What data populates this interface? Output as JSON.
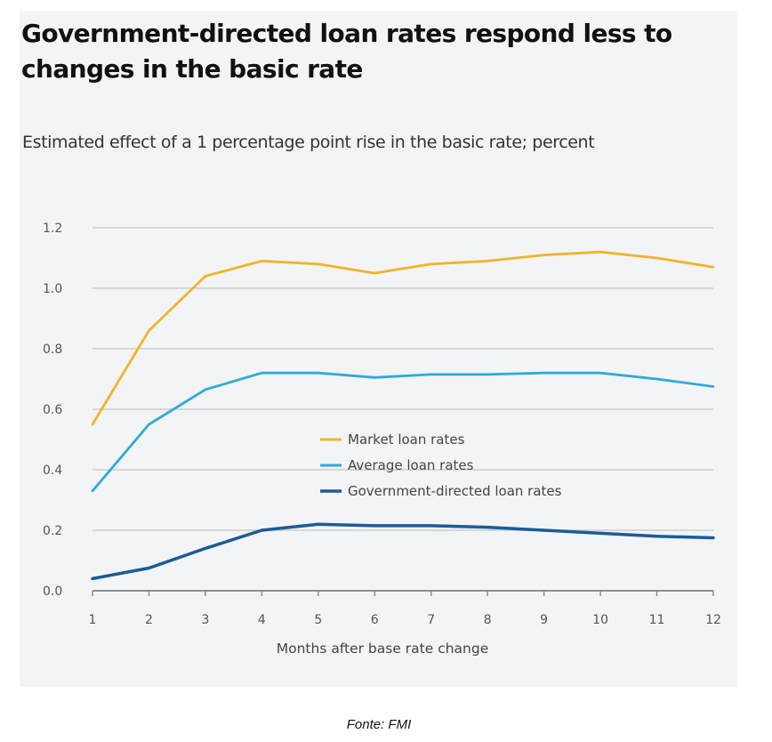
{
  "chart_data": {
    "type": "line",
    "title": "Government-directed loan rates respond less to changes in the basic rate",
    "subtitle": "Estimated effect of a 1 percentage point rise in the basic rate; percent",
    "xlabel": "Months after base rate change",
    "ylabel": "",
    "x": [
      1,
      2,
      3,
      4,
      5,
      6,
      7,
      8,
      9,
      10,
      11,
      12
    ],
    "xticks": [
      "1",
      "2",
      "3",
      "4",
      "5",
      "6",
      "7",
      "8",
      "9",
      "10",
      "11",
      "12"
    ],
    "ylim": [
      0,
      1.2
    ],
    "yticks": [
      "0.0",
      "0.2",
      "0.4",
      "0.6",
      "0.8",
      "1.0",
      "1.2"
    ],
    "ytick_values": [
      0,
      0.2,
      0.4,
      0.6,
      0.8,
      1.0,
      1.2
    ],
    "grid": true,
    "legend_position": "center",
    "series": [
      {
        "name": "Market loan rates",
        "color": "#f0b429",
        "values": [
          0.55,
          0.86,
          1.04,
          1.09,
          1.08,
          1.05,
          1.08,
          1.09,
          1.11,
          1.12,
          1.1,
          1.07
        ]
      },
      {
        "name": "Average loan rates",
        "color": "#2eaadc",
        "values": [
          0.33,
          0.55,
          0.665,
          0.72,
          0.72,
          0.705,
          0.715,
          0.715,
          0.72,
          0.72,
          0.7,
          0.675
        ]
      },
      {
        "name": "Government-directed loan rates",
        "color": "#1b5c96",
        "values": [
          0.04,
          0.075,
          0.14,
          0.2,
          0.22,
          0.215,
          0.215,
          0.21,
          0.2,
          0.19,
          0.18,
          0.175
        ]
      }
    ]
  },
  "source": "Fonte: FMI"
}
